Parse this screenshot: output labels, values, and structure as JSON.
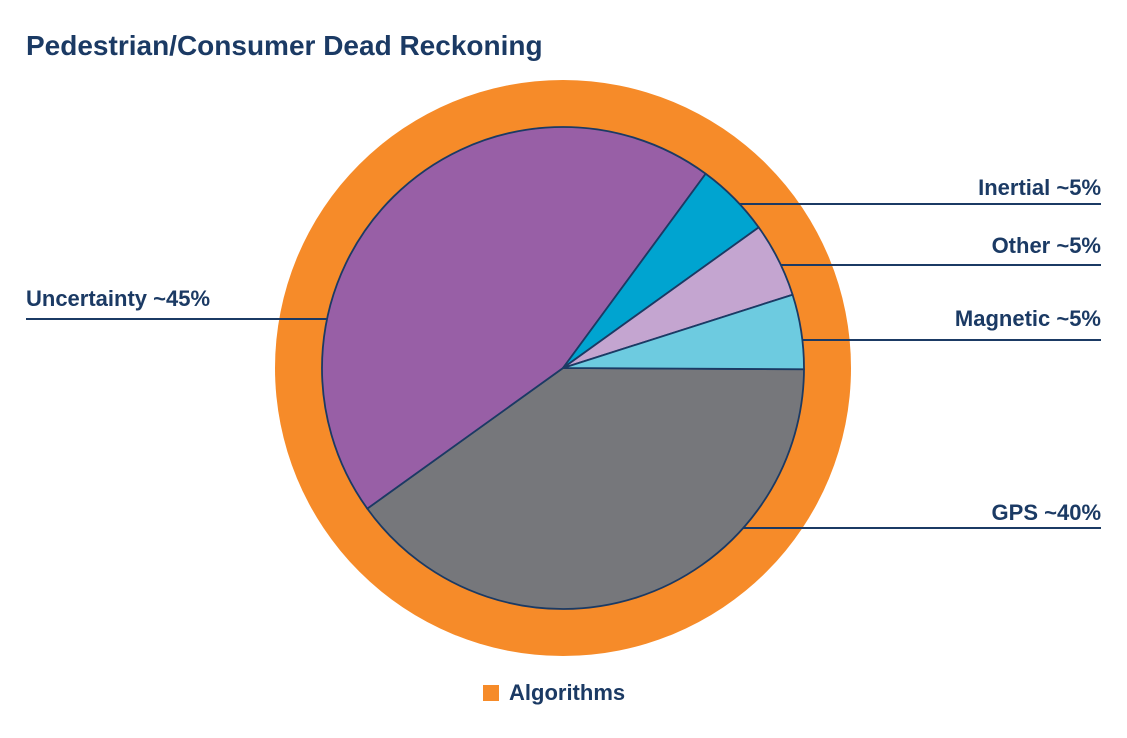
{
  "chart_data": {
    "type": "pie",
    "title": "Pedestrian/Consumer Dead Reckoning",
    "slices": [
      {
        "label": "GPS ~40%",
        "value": 40,
        "color": "#76777b"
      },
      {
        "label": "Uncertainty ~45%",
        "value": 45,
        "color": "#985fa6"
      },
      {
        "label": "Inertial ~5%",
        "value": 5,
        "color": "#00a4d0"
      },
      {
        "label": "Other ~5%",
        "value": 5,
        "color": "#c4a5d0"
      },
      {
        "label": "Magnetic ~5%",
        "value": 5,
        "color": "#6dcbe0"
      }
    ],
    "outer_ring": {
      "label": "Algorithms",
      "color": "#f68b29"
    },
    "legend": {
      "position": "bottom-center",
      "entries": [
        "Algorithms"
      ]
    },
    "text_color": "#1b3a64",
    "outline_color": "#1b3a64"
  }
}
